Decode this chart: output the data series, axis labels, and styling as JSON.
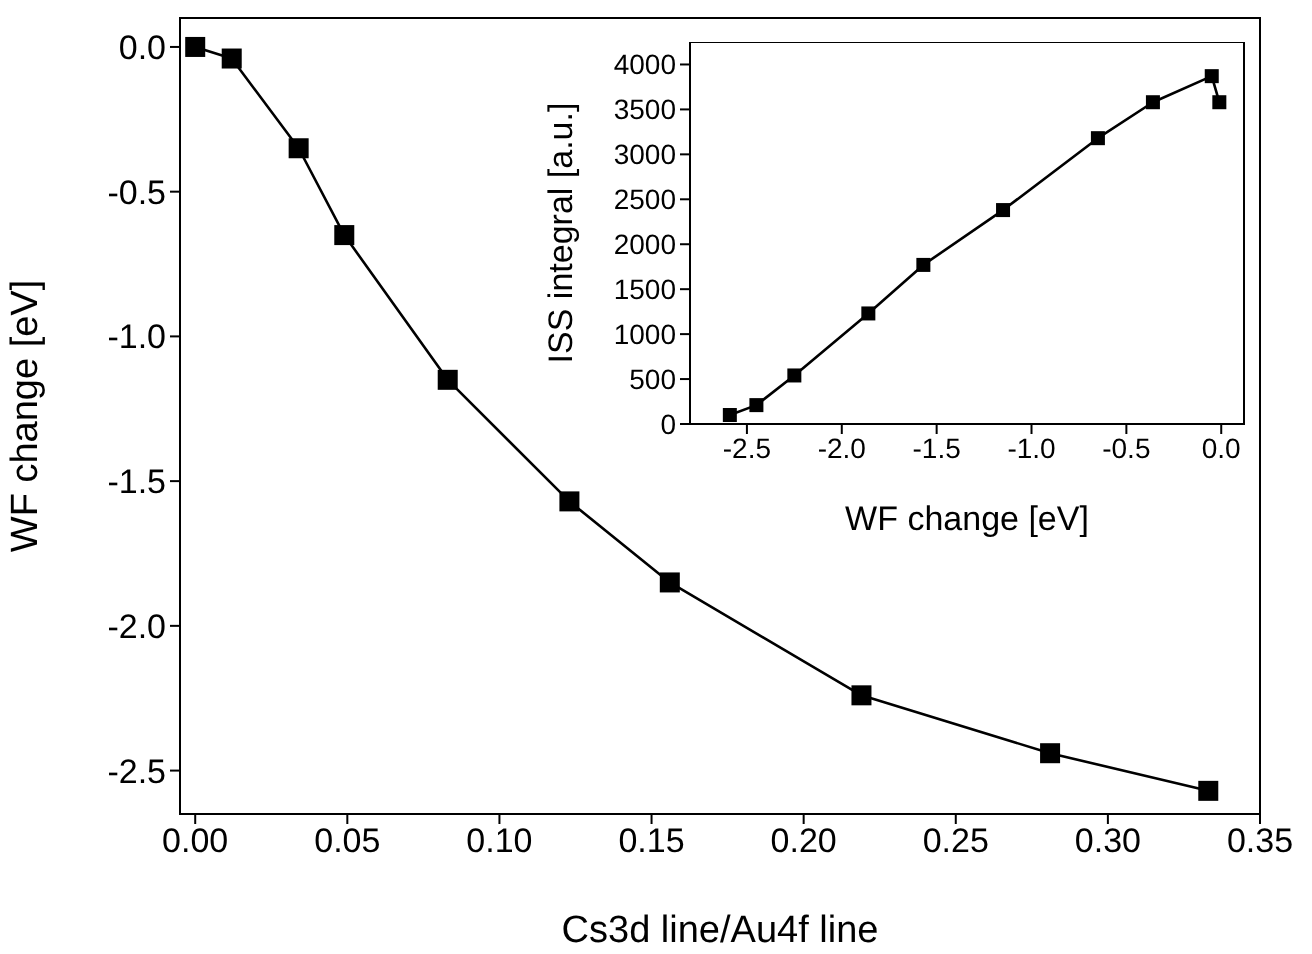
{
  "chart_data": [
    {
      "type": "line",
      "xlabel": "Cs3d line/Au4f line",
      "ylabel": "WF change [eV]",
      "marker": "square",
      "line_style": "solid",
      "grid": false,
      "legend": false,
      "xlim": [
        -0.005,
        0.35
      ],
      "xticks": [
        {
          "value": 0,
          "label": "0.00"
        },
        0.05,
        {
          "value": 0.1,
          "label": "0.10"
        },
        0.15,
        {
          "value": 0.2,
          "label": "0.20"
        },
        0.25,
        {
          "value": 0.3,
          "label": "0.30"
        },
        0.35
      ],
      "ylim": [
        -2.65,
        0.1
      ],
      "yticks": [
        {
          "value": 0,
          "label": "0.0"
        },
        -0.5,
        {
          "value": -1,
          "label": "-1.0"
        },
        -1.5,
        {
          "value": -2,
          "label": "-2.0"
        },
        -2.5
      ],
      "x": [
        0,
        0.012,
        0.034,
        0.049,
        0.083,
        0.123,
        0.156,
        0.219,
        0.281,
        0.333
      ],
      "series": [
        {
          "color": "#000000",
          "values": [
            0,
            -0.04,
            -0.35,
            -0.65,
            -1.15,
            -1.57,
            -1.85,
            -2.24,
            -2.44,
            -2.57
          ]
        }
      ]
    },
    {
      "type": "line",
      "xlabel": "WF change [eV]",
      "ylabel": "ISS integral [a.u.]",
      "marker": "square",
      "line_style": "solid",
      "grid": false,
      "legend": false,
      "xlim": [
        -2.8,
        0.12
      ],
      "xticks": [
        -2.5,
        {
          "value": -2,
          "label": "-2.0"
        },
        -1.5,
        {
          "value": -1,
          "label": "-1.0"
        },
        -0.5,
        {
          "value": 0,
          "label": "0.0"
        }
      ],
      "ylim": [
        0,
        4250
      ],
      "yticks": [
        0,
        500,
        1000,
        1500,
        2000,
        2500,
        3000,
        3500,
        4000
      ],
      "x": [
        -2.59,
        -2.45,
        -2.25,
        -1.86,
        -1.57,
        -1.15,
        -0.65,
        -0.36,
        -0.05,
        -0.01
      ],
      "series": [
        {
          "color": "#000000",
          "values": [
            100,
            210,
            540,
            1230,
            1770,
            2380,
            3180,
            3580,
            3870,
            3580
          ]
        }
      ]
    }
  ]
}
